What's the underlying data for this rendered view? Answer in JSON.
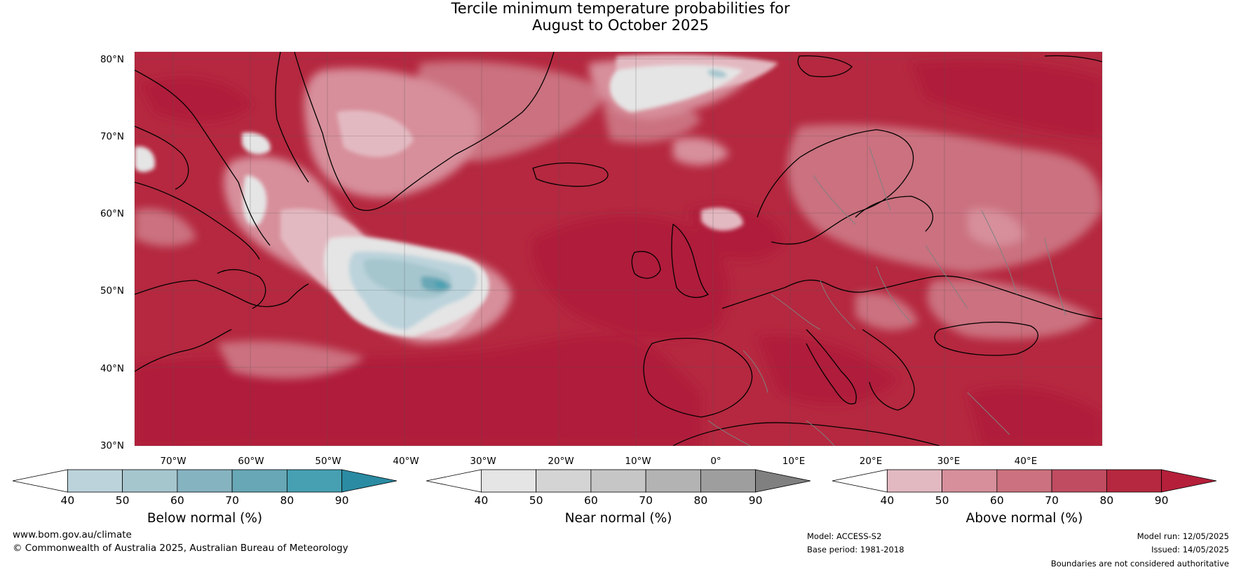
{
  "title": {
    "line1": "Tercile minimum temperature probabilities for",
    "line2": "August to October 2025"
  },
  "map": {
    "extent": {
      "lon_min": -75,
      "lon_max": 50,
      "lat_min": 30,
      "lat_max": 81
    },
    "lat_labels": [
      "30°N",
      "40°N",
      "50°N",
      "60°N",
      "70°N",
      "80°N"
    ],
    "lon_labels": [
      "70°W",
      "60°W",
      "50°W",
      "40°W",
      "30°W",
      "20°W",
      "10°W",
      "0°",
      "10°E",
      "20°E",
      "30°E",
      "40°E"
    ],
    "colors": {
      "above_dominant": "#b51f3a",
      "below_dominant": "#a6c6ce",
      "near_normal": "#e5e5e5",
      "coast": "#000000",
      "borders": "#808080"
    }
  },
  "colorbars": [
    {
      "name": "below",
      "title": "Below normal (%)",
      "ticks": [
        "40",
        "50",
        "60",
        "70",
        "80",
        "90"
      ],
      "colors": [
        "#ffffff",
        "#bcd3db",
        "#a6c6ce",
        "#86b3c0",
        "#67a7b6",
        "#46a0b2",
        "#2a8ba2"
      ]
    },
    {
      "name": "near",
      "title": "Near normal (%)",
      "ticks": [
        "40",
        "50",
        "60",
        "70",
        "80",
        "90"
      ],
      "colors": [
        "#ffffff",
        "#e5e5e5",
        "#d4d4d4",
        "#c6c6c6",
        "#b3b3b3",
        "#9e9e9e",
        "#808080"
      ]
    },
    {
      "name": "above",
      "title": "Above normal (%)",
      "ticks": [
        "40",
        "50",
        "60",
        "70",
        "80",
        "90"
      ],
      "colors": [
        "#ffffff",
        "#e3b9c1",
        "#d78f9b",
        "#cb717f",
        "#c04c61",
        "#b5283f",
        "#b51f3a"
      ]
    }
  ],
  "footer": {
    "website": "www.bom.gov.au/climate",
    "copyright": "© Commonwealth of Australia 2025, Australian Bureau of Meteorology",
    "model": "Model: ACCESS-S2",
    "base_period": "Base period: 1981-2018",
    "model_run": "Model run: 12/05/2025",
    "issued": "Issued: 14/05/2025",
    "disclaimer": "Boundaries are not considered authoritative"
  }
}
